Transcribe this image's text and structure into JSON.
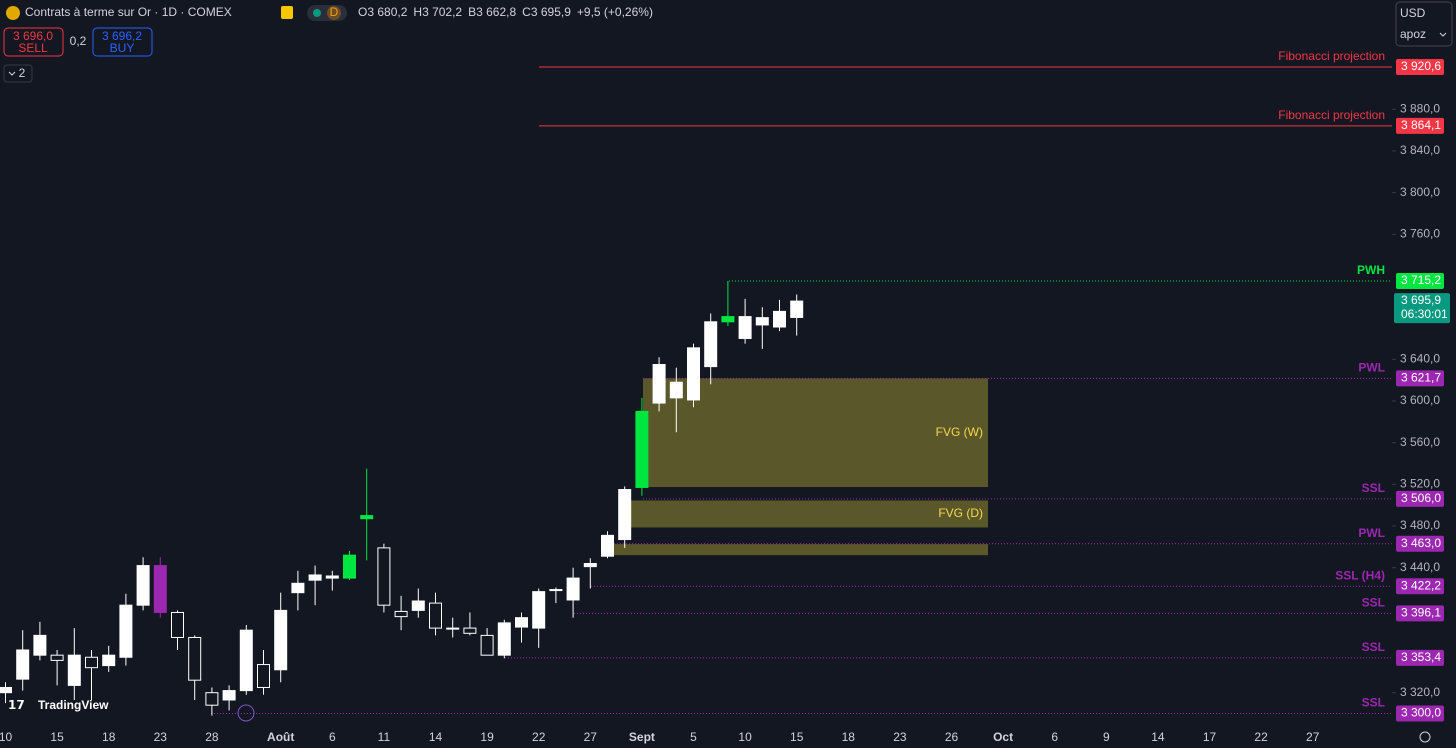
{
  "header": {
    "symbol": "Contrats à terme sur Or · 1D · COMEX",
    "badge": "D",
    "ohlc": [
      {
        "label": "O",
        "value": "3 680,2"
      },
      {
        "label": "H",
        "value": "3 702,2"
      },
      {
        "label": "B",
        "value": "3 662,8"
      },
      {
        "label": "C",
        "value": "3 695,9"
      }
    ],
    "change": "+9,5 (+0,26%)"
  },
  "trade": {
    "sell_price": "3 696,0",
    "sell": "SELL",
    "spread": "0,2",
    "buy_price": "3 696,2",
    "buy": "BUY",
    "indicators": "2"
  },
  "currency": "USD",
  "account": "apoz",
  "brand": "TradingView",
  "chart_data": {
    "type": "candlestick",
    "categories": [
      "10",
      null,
      null,
      "15",
      null,
      null,
      "18",
      null,
      null,
      "23",
      null,
      null,
      "28",
      null,
      null,
      null,
      "Août",
      null,
      null,
      "6",
      null,
      null,
      "11",
      null,
      null,
      "14",
      null,
      null,
      "19",
      null,
      null,
      "22",
      null,
      null,
      "27",
      null,
      null,
      "Sept",
      null,
      null,
      "5",
      null,
      null,
      "10",
      null,
      null,
      "15",
      null,
      null,
      "18",
      null,
      null,
      "23",
      null,
      null,
      "26",
      null,
      null,
      "Oct",
      null,
      null,
      "6",
      null,
      null,
      "9",
      null,
      null,
      "14",
      null,
      null,
      "17",
      null,
      null,
      "22",
      null,
      null,
      "27",
      null,
      null,
      null
    ],
    "open": [
      3320,
      3333,
      3356,
      3356,
      3327,
      3354,
      3346,
      3354,
      3404,
      3442,
      3397,
      3373,
      3320,
      3313,
      3322,
      3347,
      3342,
      3416,
      3428,
      3430,
      3430,
      3487,
      3459,
      3398,
      3399,
      3406,
      3381,
      3382,
      3375,
      3356,
      3383,
      3382,
      3418,
      3409,
      3441,
      3451,
      3467,
      3517,
      3598,
      3603,
      3601,
      3633,
      3676,
      3660,
      3673,
      3671,
      3680.2,
      null,
      null,
      null,
      null,
      null,
      null,
      null,
      null,
      null,
      null,
      null,
      null,
      null,
      null,
      null,
      null,
      null,
      null,
      null,
      null,
      null,
      null,
      null,
      null,
      null,
      null,
      null,
      null,
      null,
      null,
      null,
      null,
      null
    ],
    "high": [
      3330,
      3380,
      3388,
      3361,
      3382,
      3361,
      3365,
      3415,
      3450,
      3450,
      3399,
      3375,
      3325,
      3327,
      3385,
      3361,
      3416,
      3437,
      3442,
      3437,
      3456,
      3535,
      3463,
      3413,
      3420,
      3416,
      3392,
      3397,
      3382,
      3390,
      3397,
      3420,
      3421,
      3440,
      3449,
      3475,
      3518,
      3603,
      3642,
      3632,
      3655,
      3684,
      3715.2,
      3698,
      3690,
      3697,
      3702.2,
      null,
      null,
      null,
      null,
      null,
      null,
      null,
      null,
      null,
      null,
      null,
      null,
      null,
      null,
      null,
      null,
      null,
      null,
      null,
      null,
      null,
      null,
      null,
      null,
      null,
      null,
      null,
      null,
      null,
      null,
      null,
      null,
      null
    ],
    "low": [
      3310,
      3322,
      3351,
      3327,
      3313,
      3313,
      3340,
      3346,
      3399,
      3392,
      3361,
      3313,
      3298,
      3303,
      3318,
      3318,
      3330,
      3399,
      3404,
      3418,
      3428,
      3447,
      3397,
      3380,
      3392,
      3375,
      3373,
      3375,
      3356,
      3353,
      3368,
      3363,
      3406,
      3392,
      3420,
      3449,
      3459,
      3509,
      3590,
      3570,
      3594,
      3616,
      3672,
      3655,
      3650,
      3667,
      3662.8,
      null,
      null,
      null,
      null,
      null,
      null,
      null,
      null,
      null,
      null,
      null,
      null,
      null,
      null,
      null,
      null,
      null,
      null,
      null,
      null,
      null,
      null,
      null,
      null,
      null,
      null,
      null,
      null,
      null,
      null,
      null,
      null,
      null
    ],
    "close": [
      3325,
      3361,
      3375,
      3351,
      3356,
      3344,
      3356,
      3404,
      3442,
      3397,
      3373,
      3332,
      3308,
      3322,
      3380,
      3325,
      3399,
      3425,
      3433,
      3432,
      3452,
      3490,
      3404,
      3393,
      3408,
      3382,
      3382,
      3377,
      3356,
      3387,
      3392,
      3417,
      3419,
      3430,
      3444,
      3471,
      3515,
      3590,
      3635,
      3618,
      3651,
      3676,
      3681,
      3681,
      3680,
      3686,
      3695.9,
      null,
      null,
      null,
      null,
      null,
      null,
      null,
      null,
      null,
      null,
      null,
      null,
      null,
      null,
      null,
      null,
      null,
      null,
      null,
      null,
      null,
      null,
      null,
      null,
      null,
      null,
      null,
      null,
      null,
      null,
      null,
      null,
      null
    ],
    "candle_colors": [
      null,
      null,
      null,
      null,
      null,
      null,
      null,
      null,
      null,
      "#9c27b0",
      null,
      null,
      null,
      null,
      null,
      null,
      null,
      null,
      null,
      null,
      "#00e640",
      "#00e640",
      null,
      null,
      null,
      null,
      null,
      null,
      null,
      null,
      null,
      null,
      null,
      null,
      null,
      null,
      null,
      "#00e640",
      null,
      null,
      null,
      null,
      "#00e640",
      null,
      null,
      null,
      null,
      null,
      null,
      null,
      null,
      null,
      null,
      null,
      null,
      null,
      null,
      null,
      null,
      null,
      null,
      null,
      null,
      null,
      null,
      null,
      null,
      null,
      null,
      null,
      null,
      null,
      null,
      null,
      null,
      null,
      null,
      null,
      null,
      null
    ],
    "up_color": "#ffffff",
    "down_color": "#131722",
    "border_color": "#ffffff",
    "ylim": [
      3286.1,
      3984.9
    ],
    "yticks": [
      {
        "value": 3320,
        "label": "3 320,0"
      },
      {
        "value": 3440,
        "label": "3 440,0"
      },
      {
        "value": 3480,
        "label": "3 480,0"
      },
      {
        "value": 3520,
        "label": "3 520,0"
      },
      {
        "value": 3560,
        "label": "3 560,0"
      },
      {
        "value": 3600,
        "label": "3 600,0"
      },
      {
        "value": 3640,
        "label": "3 640,0"
      },
      {
        "value": 3760,
        "label": "3 760,0"
      },
      {
        "value": 3800,
        "label": "3 800,0"
      },
      {
        "value": 3840,
        "label": "3 840,0"
      },
      {
        "value": 3880,
        "label": "3 880,0"
      }
    ],
    "levels": [
      {
        "label": "Fibonacci projection",
        "value": 3920.6,
        "value_label": "3 920,6",
        "color": "#f23645",
        "style": "solid"
      },
      {
        "label": "Fibonacci projection",
        "value": 3864.1,
        "value_label": "3 864,1",
        "color": "#f23645",
        "style": "solid"
      },
      {
        "label": "PWH",
        "value": 3715.2,
        "value_label": "3 715,2",
        "color": "#00e640",
        "style": "dotted"
      },
      {
        "label": "PWL",
        "value": 3621.7,
        "value_label": "3 621,7",
        "color": "#9c27b0",
        "style": "dotted"
      },
      {
        "label": "SSL",
        "value": 3506.0,
        "value_label": "3 506,0",
        "color": "#9c27b0",
        "style": "dotted"
      },
      {
        "label": "PWL",
        "value": 3463.0,
        "value_label": "3 463,0",
        "color": "#9c27b0",
        "style": "dotted"
      },
      {
        "label": "SSL (H4)",
        "value": 3422.2,
        "value_label": "3 422,2",
        "color": "#9c27b0",
        "style": "dotted"
      },
      {
        "label": "SSL",
        "value": 3396.1,
        "value_label": "3 396,1",
        "color": "#9c27b0",
        "style": "dotted"
      },
      {
        "label": "SSL",
        "value": 3353.4,
        "value_label": "3 353,4",
        "color": "#9c27b0",
        "style": "dotted"
      },
      {
        "label": "SSL",
        "value": 3300.0,
        "value_label": "3 300,0",
        "color": "#9c27b0",
        "style": "dotted"
      }
    ],
    "zones": [
      {
        "label": "FVG (W)",
        "top": 3621.7,
        "bottom": 3517.4
      },
      {
        "label": "FVG (D)",
        "top": 3504.5,
        "bottom": 3478.6
      },
      {
        "top": 3462.6,
        "bottom": 3452
      }
    ],
    "last_price": {
      "value": 3695.9,
      "label": "3 695,9",
      "countdown": "06:30:01",
      "color": "#089981"
    }
  }
}
